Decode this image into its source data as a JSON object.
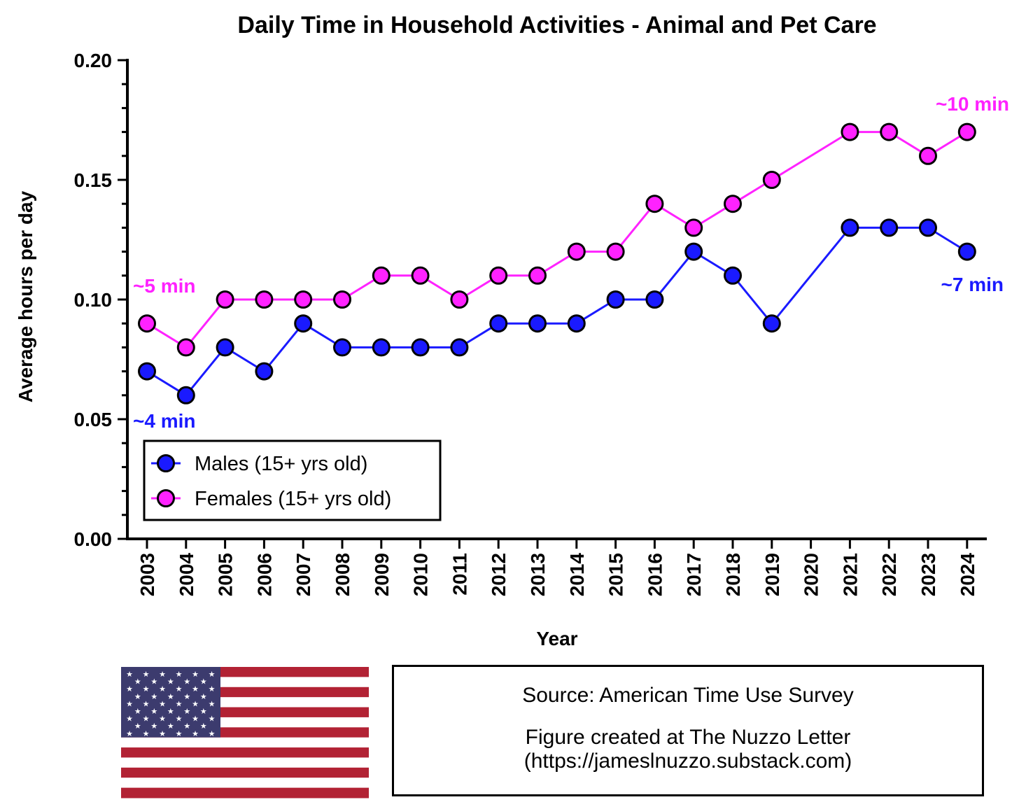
{
  "chart_data": {
    "type": "line",
    "title": "Daily Time in Household Activities - Animal and Pet Care",
    "xlabel": "Year",
    "ylabel": "Average hours per day",
    "ylim": [
      0,
      0.2
    ],
    "yticks": [
      "0.00",
      "0.05",
      "0.10",
      "0.15",
      "0.20"
    ],
    "ytick_values": [
      0,
      0.05,
      0.1,
      0.15,
      0.2
    ],
    "categories": [
      "2003",
      "2004",
      "2005",
      "2006",
      "2007",
      "2008",
      "2009",
      "2010",
      "2011",
      "2012",
      "2013",
      "2014",
      "2015",
      "2016",
      "2017",
      "2018",
      "2019",
      "2020",
      "2021",
      "2022",
      "2023",
      "2024"
    ],
    "series": [
      {
        "name": "Males (15+ yrs old)",
        "color": "#1a1aff",
        "values": [
          0.07,
          0.06,
          0.08,
          0.07,
          0.09,
          0.08,
          0.08,
          0.08,
          0.08,
          0.09,
          0.09,
          0.09,
          0.1,
          0.1,
          0.12,
          0.11,
          0.09,
          null,
          0.13,
          0.13,
          0.13,
          0.12
        ]
      },
      {
        "name": "Females (15+ yrs old)",
        "color": "#ff22ff",
        "values": [
          0.09,
          0.08,
          0.1,
          0.1,
          0.1,
          0.1,
          0.11,
          0.11,
          0.1,
          0.11,
          0.11,
          0.12,
          0.12,
          0.14,
          0.13,
          0.14,
          0.15,
          null,
          0.17,
          0.17,
          0.16,
          0.17
        ]
      }
    ],
    "annotations": [
      {
        "text": "~5 min",
        "series": "Females (15+ yrs old)",
        "category": "2003"
      },
      {
        "text": "~4 min",
        "series": "Males (15+ yrs old)",
        "category": "2003"
      },
      {
        "text": "~10 min",
        "series": "Females (15+ yrs old)",
        "category": "2024"
      },
      {
        "text": "~7 min",
        "series": "Males (15+ yrs old)",
        "category": "2024"
      }
    ],
    "legend_position": "bottom-left"
  },
  "footer": {
    "source": "Source: American Time Use Survey",
    "credit": "Figure created at The Nuzzo Letter",
    "url": "(https://jameslnuzzo.substack.com)"
  },
  "flag": {
    "name": "United States flag",
    "stripe_red": "#b22234",
    "canton_blue": "#3c3b6e"
  }
}
